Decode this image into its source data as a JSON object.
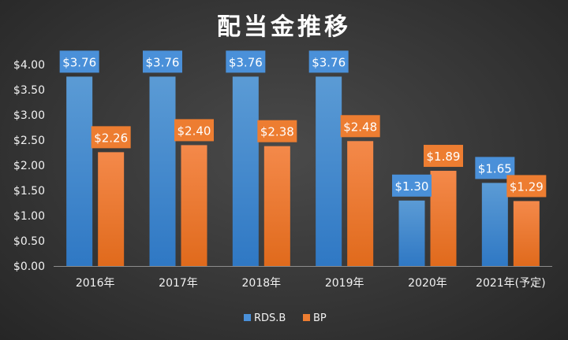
{
  "chart_data": {
    "type": "bar",
    "title": "配当金推移",
    "categories": [
      "2016年",
      "2017年",
      "2018年",
      "2019年",
      "2020年",
      "2021年(予定)"
    ],
    "series": [
      {
        "name": "RDS.B",
        "values": [
          3.76,
          3.76,
          3.76,
          3.76,
          1.3,
          1.65
        ],
        "labels": [
          "$3.76",
          "$3.76",
          "$3.76",
          "$3.76",
          "$1.30",
          "$1.65"
        ],
        "color": "#4a90d9"
      },
      {
        "name": "BP",
        "values": [
          2.26,
          2.4,
          2.38,
          2.48,
          1.89,
          1.29
        ],
        "labels": [
          "$2.26",
          "$2.40",
          "$2.38",
          "$2.48",
          "$1.89",
          "$1.29"
        ],
        "color": "#ed7d31"
      }
    ],
    "ylim": [
      0,
      4
    ],
    "yticks": [
      0,
      0.5,
      1,
      1.5,
      2,
      2.5,
      3,
      3.5,
      4
    ],
    "ytick_labels": [
      "$0.00",
      "$0.50",
      "$1.00",
      "$1.50",
      "$2.00",
      "$2.50",
      "$3.00",
      "$3.50",
      "$4.00"
    ],
    "grid": false,
    "legend_position": "bottom"
  }
}
